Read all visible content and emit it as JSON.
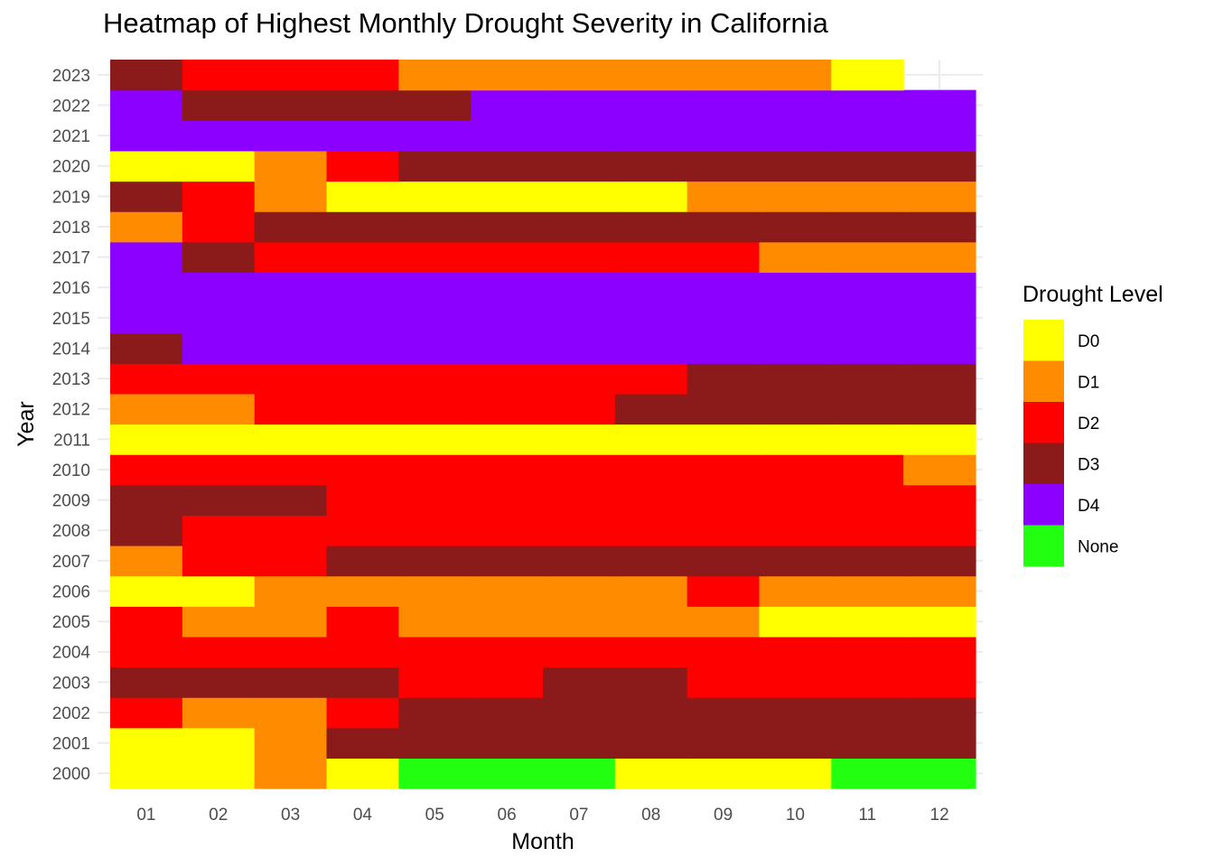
{
  "chart_data": {
    "type": "heatmap",
    "title": "Heatmap of Highest Monthly Drought Severity in California",
    "xlabel": "Month",
    "ylabel": "Year",
    "x": [
      "01",
      "02",
      "03",
      "04",
      "05",
      "06",
      "07",
      "08",
      "09",
      "10",
      "11",
      "12"
    ],
    "y": [
      "2000",
      "2001",
      "2002",
      "2003",
      "2004",
      "2005",
      "2006",
      "2007",
      "2008",
      "2009",
      "2010",
      "2011",
      "2012",
      "2013",
      "2014",
      "2015",
      "2016",
      "2017",
      "2018",
      "2019",
      "2020",
      "2021",
      "2022",
      "2023"
    ],
    "values": {
      "2000": [
        "D0",
        "D0",
        "D1",
        "D0",
        "None",
        "None",
        "None",
        "D0",
        "D0",
        "D0",
        "None",
        "None"
      ],
      "2001": [
        "D0",
        "D0",
        "D1",
        "D3",
        "D3",
        "D3",
        "D3",
        "D3",
        "D3",
        "D3",
        "D3",
        "D3"
      ],
      "2002": [
        "D2",
        "D1",
        "D1",
        "D2",
        "D3",
        "D3",
        "D3",
        "D3",
        "D3",
        "D3",
        "D3",
        "D3"
      ],
      "2003": [
        "D3",
        "D3",
        "D3",
        "D3",
        "D2",
        "D2",
        "D3",
        "D3",
        "D2",
        "D2",
        "D2",
        "D2"
      ],
      "2004": [
        "D2",
        "D2",
        "D2",
        "D2",
        "D2",
        "D2",
        "D2",
        "D2",
        "D2",
        "D2",
        "D2",
        "D2"
      ],
      "2005": [
        "D2",
        "D1",
        "D1",
        "D2",
        "D1",
        "D1",
        "D1",
        "D1",
        "D1",
        "D0",
        "D0",
        "D0"
      ],
      "2006": [
        "D0",
        "D0",
        "D1",
        "D1",
        "D1",
        "D1",
        "D1",
        "D1",
        "D2",
        "D1",
        "D1",
        "D1"
      ],
      "2007": [
        "D1",
        "D2",
        "D2",
        "D3",
        "D3",
        "D3",
        "D3",
        "D3",
        "D3",
        "D3",
        "D3",
        "D3"
      ],
      "2008": [
        "D3",
        "D2",
        "D2",
        "D2",
        "D2",
        "D2",
        "D2",
        "D2",
        "D2",
        "D2",
        "D2",
        "D2"
      ],
      "2009": [
        "D3",
        "D3",
        "D3",
        "D2",
        "D2",
        "D2",
        "D2",
        "D2",
        "D2",
        "D2",
        "D2",
        "D2"
      ],
      "2010": [
        "D2",
        "D2",
        "D2",
        "D2",
        "D2",
        "D2",
        "D2",
        "D2",
        "D2",
        "D2",
        "D2",
        "D1"
      ],
      "2011": [
        "D0",
        "D0",
        "D0",
        "D0",
        "D0",
        "D0",
        "D0",
        "D0",
        "D0",
        "D0",
        "D0",
        "D0"
      ],
      "2012": [
        "D1",
        "D1",
        "D2",
        "D2",
        "D2",
        "D2",
        "D2",
        "D3",
        "D3",
        "D3",
        "D3",
        "D3"
      ],
      "2013": [
        "D2",
        "D2",
        "D2",
        "D2",
        "D2",
        "D2",
        "D2",
        "D2",
        "D3",
        "D3",
        "D3",
        "D3"
      ],
      "2014": [
        "D3",
        "D4",
        "D4",
        "D4",
        "D4",
        "D4",
        "D4",
        "D4",
        "D4",
        "D4",
        "D4",
        "D4"
      ],
      "2015": [
        "D4",
        "D4",
        "D4",
        "D4",
        "D4",
        "D4",
        "D4",
        "D4",
        "D4",
        "D4",
        "D4",
        "D4"
      ],
      "2016": [
        "D4",
        "D4",
        "D4",
        "D4",
        "D4",
        "D4",
        "D4",
        "D4",
        "D4",
        "D4",
        "D4",
        "D4"
      ],
      "2017": [
        "D4",
        "D3",
        "D2",
        "D2",
        "D2",
        "D2",
        "D2",
        "D2",
        "D2",
        "D1",
        "D1",
        "D1"
      ],
      "2018": [
        "D1",
        "D2",
        "D3",
        "D3",
        "D3",
        "D3",
        "D3",
        "D3",
        "D3",
        "D3",
        "D3",
        "D3"
      ],
      "2019": [
        "D3",
        "D2",
        "D1",
        "D0",
        "D0",
        "D0",
        "D0",
        "D0",
        "D1",
        "D1",
        "D1",
        "D1"
      ],
      "2020": [
        "D0",
        "D0",
        "D1",
        "D2",
        "D3",
        "D3",
        "D3",
        "D3",
        "D3",
        "D3",
        "D3",
        "D3"
      ],
      "2021": [
        "D4",
        "D4",
        "D4",
        "D4",
        "D4",
        "D4",
        "D4",
        "D4",
        "D4",
        "D4",
        "D4",
        "D4"
      ],
      "2022": [
        "D4",
        "D3",
        "D3",
        "D3",
        "D3",
        "D4",
        "D4",
        "D4",
        "D4",
        "D4",
        "D4",
        "D4"
      ],
      "2023": [
        "D3",
        "D2",
        "D2",
        "D2",
        "D1",
        "D1",
        "D1",
        "D1",
        "D1",
        "D1",
        "D0",
        null
      ]
    },
    "legend": {
      "title": "Drought Level",
      "position": "right",
      "items": [
        {
          "label": "D0",
          "color": "#FFFF00"
        },
        {
          "label": "D1",
          "color": "#FF8C00"
        },
        {
          "label": "D2",
          "color": "#FF0000"
        },
        {
          "label": "D3",
          "color": "#8B1A1A"
        },
        {
          "label": "D4",
          "color": "#8B00FF"
        },
        {
          "label": "None",
          "color": "#22FF11"
        }
      ]
    },
    "grid": true
  }
}
